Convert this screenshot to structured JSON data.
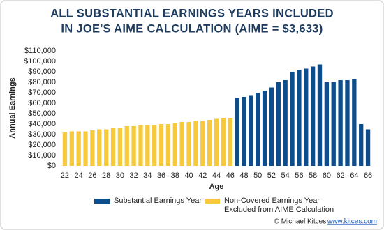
{
  "chart_data": {
    "type": "bar",
    "title": [
      "ALL SUBSTANTIAL EARNINGS YEARS INCLUDED",
      "IN JOE'S AIME CALCULATION (AIME = $3,633)"
    ],
    "y_label": "Annual Earnings",
    "x_label": "Age",
    "categories": [
      "22",
      null,
      "24",
      null,
      "26",
      null,
      "28",
      null,
      "30",
      null,
      "32",
      null,
      "34",
      null,
      "36",
      null,
      "38",
      null,
      "40",
      null,
      "42",
      null,
      "44",
      null,
      "46",
      null,
      "48",
      null,
      "50",
      null,
      "52",
      null,
      "54",
      null,
      "56",
      null,
      "58",
      null,
      "60",
      null,
      "62",
      null,
      "64",
      null,
      "66"
    ],
    "series": [
      {
        "name": "Substantial Earnings Year",
        "color": "#0e4d8c",
        "values": [
          null,
          null,
          null,
          null,
          null,
          null,
          null,
          null,
          null,
          null,
          null,
          null,
          null,
          null,
          null,
          null,
          null,
          null,
          null,
          null,
          null,
          null,
          null,
          null,
          null,
          65000,
          66000,
          67000,
          70000,
          72000,
          75000,
          80000,
          82000,
          90000,
          92000,
          93000,
          95000,
          97000,
          80000,
          80000,
          82000,
          82000,
          83000,
          40000,
          35000
        ]
      },
      {
        "name": "Non-Covered Earnings Year Excluded from AIME Calculation",
        "color": "#f7c93c",
        "values": [
          32000,
          33000,
          33000,
          33000,
          34000,
          35000,
          35000,
          36000,
          36000,
          38000,
          38000,
          39000,
          39000,
          39000,
          40000,
          40000,
          41000,
          42000,
          42000,
          43000,
          43000,
          44000,
          45000,
          46000,
          46000,
          null,
          null,
          null,
          null,
          null,
          null,
          null,
          null,
          null,
          null,
          null,
          null,
          null,
          null,
          null,
          null,
          null,
          null,
          null,
          null
        ]
      }
    ],
    "ylim": [
      0,
      110000
    ],
    "yticks": [
      {
        "value": 0,
        "label": "$0"
      },
      {
        "value": 10000,
        "label": "$10,000"
      },
      {
        "value": 20000,
        "label": "$20,000"
      },
      {
        "value": 30000,
        "label": "$30,000"
      },
      {
        "value": 40000,
        "label": "$40,000"
      },
      {
        "value": 50000,
        "label": "$50,000"
      },
      {
        "value": 60000,
        "label": "$60,000"
      },
      {
        "value": 70000,
        "label": "$70,000"
      },
      {
        "value": 80000,
        "label": "$80,000"
      },
      {
        "value": 90000,
        "label": "$90,000"
      },
      {
        "value": 100000,
        "label": "$100,000"
      },
      {
        "value": 110000,
        "label": "$110,000"
      }
    ],
    "grid": false
  },
  "credit": "© Michael Kitces,",
  "credit_link": "www.kitces.com"
}
